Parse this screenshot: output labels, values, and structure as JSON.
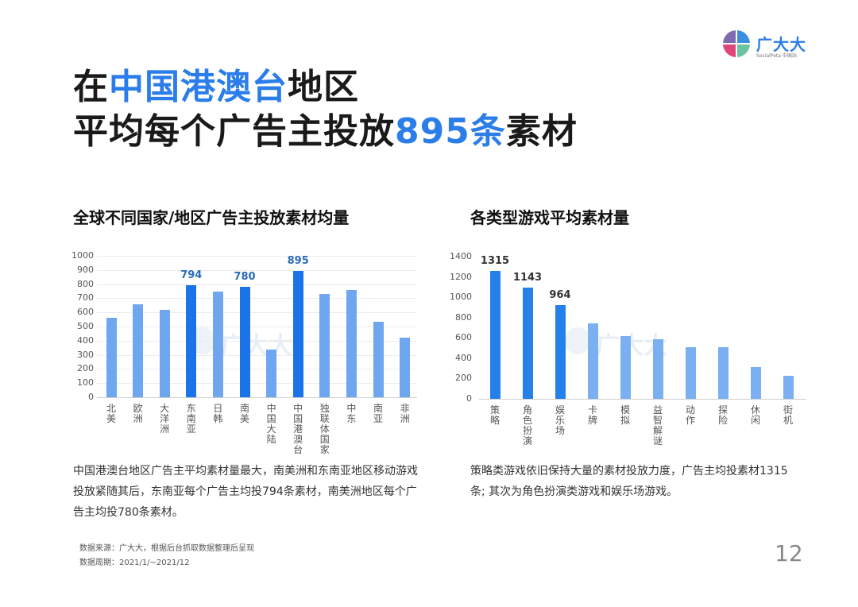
{
  "brand": {
    "name": "广大大",
    "subtitle": "SocialPeta 中国站",
    "colors": {
      "q1": "#7f6bb0",
      "q2": "#3b8fe0",
      "q3": "#e0457b",
      "q4": "#6cc3a0"
    }
  },
  "headline": {
    "line1_pre": "在",
    "line1_hl": "中国港澳台",
    "line1_post": "地区",
    "line2_pre": "平均每个广告主投放",
    "line2_hl": "895条",
    "line2_post": "素材",
    "accent_color": "#2b7de9"
  },
  "left_section": {
    "title": "全球不同国家/地区广告主投放素材均量",
    "description": "中国港澳台地区广告主平均素材量最大，南美洲和东南亚地区移动游戏投放紧随其后，东南亚每个广告主均投794条素材，南美洲地区每个广告主均投780条素材。"
  },
  "right_section": {
    "title": "各类型游戏平均素材量",
    "description": "策略类游戏依旧保持大量的素材投放力度，广告主均投素材1315条; 其次为角色扮演类游戏和娱乐场游戏。"
  },
  "chart_data": [
    {
      "type": "bar",
      "title": "全球不同国家/地区广告主投放素材均量",
      "xlabel": "",
      "ylabel": "",
      "ylim": [
        0,
        1000
      ],
      "yticks": [
        0,
        100,
        200,
        300,
        400,
        500,
        600,
        700,
        800,
        900,
        1000
      ],
      "grid": true,
      "categories": [
        "北美",
        "欧洲",
        "大洋洲",
        "东南亚",
        "日韩",
        "南美",
        "中国大陆",
        "中国港澳台",
        "独联体国家",
        "中东",
        "南亚",
        "非洲"
      ],
      "values": [
        560,
        655,
        620,
        794,
        750,
        780,
        335,
        895,
        728,
        760,
        535,
        420
      ],
      "highlighted": [
        "东南亚",
        "南美",
        "中国港澳台"
      ],
      "data_labels": {
        "东南亚": "794",
        "南美": "780",
        "中国港澳台": "895"
      },
      "colors": {
        "normal": "#6ea7f0",
        "highlight": "#1a73e8",
        "label": "#2b6cb8"
      }
    },
    {
      "type": "bar",
      "title": "各类型游戏平均素材量",
      "xlabel": "",
      "ylabel": "",
      "ylim": [
        0,
        1400
      ],
      "yticks": [
        0,
        200,
        400,
        600,
        800,
        1000,
        1200,
        1400
      ],
      "grid": false,
      "categories": [
        "策略",
        "角色扮演",
        "娱乐场",
        "卡牌",
        "模拟",
        "益智解谜",
        "动作",
        "探险",
        "休闲",
        "街机"
      ],
      "values": [
        1315,
        1143,
        964,
        740,
        615,
        590,
        505,
        505,
        310,
        225
      ],
      "highlighted": [
        "策略",
        "角色扮演",
        "娱乐场"
      ],
      "data_labels": {
        "策略": "1315",
        "角色扮演": "1143",
        "娱乐场": "964"
      },
      "colors": {
        "normal": "#7ab0f2",
        "highlight": "#2680ea",
        "label": "#333333"
      }
    }
  ],
  "watermark": "广大大",
  "footer": {
    "source": "数据来源：广大大，根据后台抓取数据整理后呈现",
    "period": "数据周期：2021/1/~2021/12",
    "page_number": "12"
  }
}
